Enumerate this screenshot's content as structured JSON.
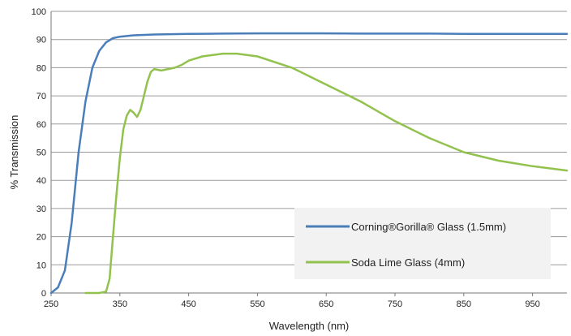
{
  "chart_data": {
    "type": "line",
    "title": "",
    "xlabel": "Wavelength (nm)",
    "ylabel": "% Transmission",
    "xlim": [
      250,
      1000
    ],
    "ylim": [
      0,
      100
    ],
    "xticks": [
      250,
      350,
      450,
      550,
      650,
      750,
      850,
      950
    ],
    "yticks": [
      0,
      10,
      20,
      30,
      40,
      50,
      60,
      70,
      80,
      90,
      100
    ],
    "grid": true,
    "legend_position": "bottom-right",
    "series": [
      {
        "name": "Corning®Gorilla® Glass (1.5mm)",
        "color": "#4a7ebb",
        "x": [
          250,
          260,
          270,
          280,
          290,
          300,
          310,
          320,
          330,
          340,
          350,
          370,
          400,
          450,
          500,
          550,
          600,
          650,
          700,
          750,
          800,
          850,
          900,
          950,
          1000
        ],
        "y": [
          0,
          2,
          8,
          25,
          50,
          68,
          80,
          86,
          89,
          90.5,
          91,
          91.5,
          91.8,
          92,
          92.1,
          92.2,
          92.2,
          92.2,
          92.1,
          92.1,
          92.1,
          92,
          92,
          92,
          92
        ]
      },
      {
        "name": "Soda Lime Glass (4mm)",
        "color": "#92c24e",
        "x": [
          300,
          320,
          330,
          335,
          340,
          345,
          350,
          355,
          360,
          365,
          370,
          375,
          380,
          385,
          390,
          395,
          400,
          410,
          420,
          430,
          440,
          450,
          470,
          500,
          520,
          550,
          600,
          650,
          700,
          750,
          800,
          850,
          900,
          950,
          1000
        ],
        "y": [
          0,
          0,
          0.5,
          5,
          20,
          35,
          48,
          58,
          63,
          65,
          64,
          62.5,
          65,
          70,
          75,
          78.5,
          79.5,
          79,
          79.5,
          80,
          81,
          82.5,
          84,
          85,
          85,
          84,
          80,
          74,
          68,
          61,
          55,
          50,
          47,
          45,
          43.5
        ]
      }
    ]
  }
}
